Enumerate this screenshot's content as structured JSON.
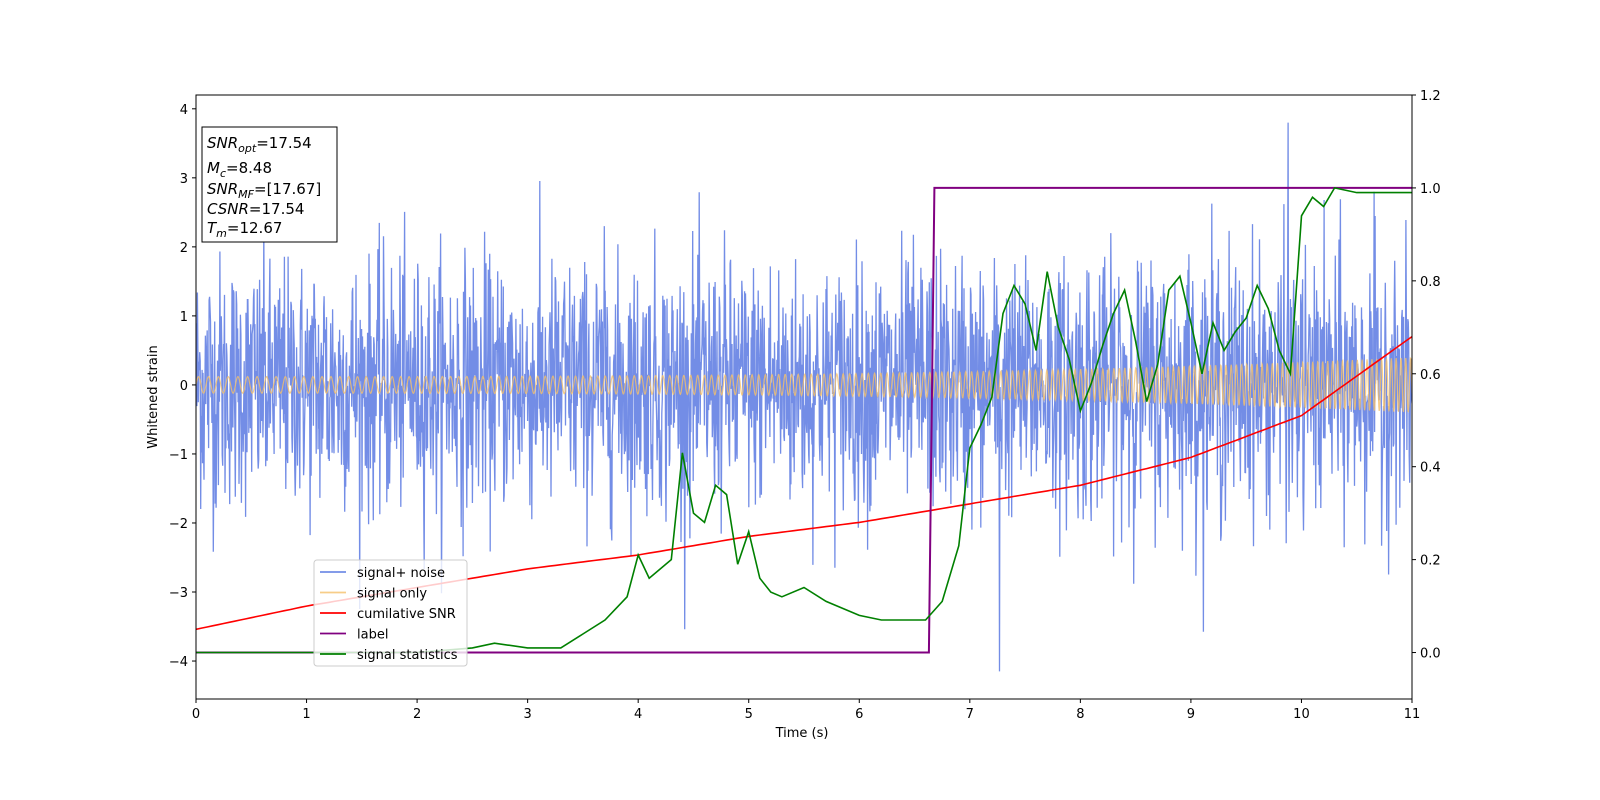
{
  "chart_data": {
    "type": "line",
    "xlabel": "Time (s)",
    "ylabel": "Whitened strain",
    "xlim": [
      0,
      11
    ],
    "ylim_left": [
      -4.55,
      4.2
    ],
    "ylim_right": [
      -0.1,
      1.2
    ],
    "x_ticks": [
      "0",
      "1",
      "2",
      "3",
      "4",
      "5",
      "6",
      "7",
      "8",
      "9",
      "10",
      "11"
    ],
    "y_ticks_left": [
      "−4",
      "−3",
      "−2",
      "−1",
      "0",
      "1",
      "2",
      "3",
      "4"
    ],
    "y_ticks_right": [
      "0.0",
      "0.2",
      "0.4",
      "0.6",
      "0.8",
      "1.0",
      "1.2"
    ],
    "grid": false,
    "legend_position": "lower-left",
    "info_box": {
      "snr_opt": "=17.54",
      "mc": "=8.48",
      "snr_mf": "=[17.67]",
      "csnr": "=17.54",
      "tm": "=12.67"
    },
    "series": [
      {
        "name": "signal+ noise",
        "color": "#6b87e5",
        "axis": "left",
        "description_values": "noise band approx ±1.8 std, peaks near 3.8 at t≈9.9"
      },
      {
        "name": "signal only",
        "color": "#f5c06a",
        "axis": "left",
        "amplitude_start": 0.12,
        "amplitude_end": 0.4
      },
      {
        "name": "cumilative SNR",
        "color": "#ff0000",
        "axis": "right",
        "x": [
          0,
          1,
          2,
          3,
          4,
          5,
          6,
          7,
          8,
          9,
          10,
          11
        ],
        "y": [
          0.05,
          0.1,
          0.14,
          0.18,
          0.21,
          0.25,
          0.28,
          0.32,
          0.36,
          0.42,
          0.51,
          0.68
        ]
      },
      {
        "name": "label",
        "color": "#800080",
        "axis": "right",
        "x": [
          0,
          6.63,
          6.68,
          11
        ],
        "y": [
          0,
          0,
          1,
          1
        ]
      },
      {
        "name": "signal statistics",
        "color": "#008000",
        "axis": "right",
        "x": [
          0,
          1,
          2,
          2.5,
          2.7,
          3,
          3.3,
          3.5,
          3.7,
          3.9,
          4.0,
          4.1,
          4.2,
          4.3,
          4.4,
          4.5,
          4.6,
          4.7,
          4.8,
          4.9,
          5.0,
          5.1,
          5.2,
          5.3,
          5.5,
          5.7,
          6.0,
          6.2,
          6.4,
          6.6,
          6.75,
          6.9,
          7.0,
          7.1,
          7.2,
          7.3,
          7.4,
          7.5,
          7.6,
          7.7,
          7.8,
          7.9,
          8.0,
          8.1,
          8.2,
          8.3,
          8.4,
          8.5,
          8.6,
          8.7,
          8.8,
          8.9,
          9.0,
          9.1,
          9.2,
          9.3,
          9.4,
          9.5,
          9.6,
          9.7,
          9.8,
          9.9,
          10.0,
          10.1,
          10.2,
          10.3,
          10.5,
          10.8,
          11
        ],
        "y": [
          0.0,
          0.0,
          0.0,
          0.01,
          0.02,
          0.01,
          0.01,
          0.04,
          0.07,
          0.12,
          0.21,
          0.16,
          0.18,
          0.2,
          0.43,
          0.3,
          0.28,
          0.36,
          0.34,
          0.19,
          0.26,
          0.16,
          0.13,
          0.12,
          0.14,
          0.11,
          0.08,
          0.07,
          0.07,
          0.07,
          0.11,
          0.23,
          0.44,
          0.49,
          0.55,
          0.73,
          0.79,
          0.75,
          0.65,
          0.82,
          0.7,
          0.63,
          0.52,
          0.58,
          0.66,
          0.73,
          0.78,
          0.67,
          0.54,
          0.62,
          0.78,
          0.81,
          0.71,
          0.6,
          0.71,
          0.65,
          0.69,
          0.72,
          0.79,
          0.74,
          0.65,
          0.6,
          0.94,
          0.98,
          0.96,
          1.0,
          0.99,
          0.99,
          0.99
        ]
      }
    ]
  }
}
